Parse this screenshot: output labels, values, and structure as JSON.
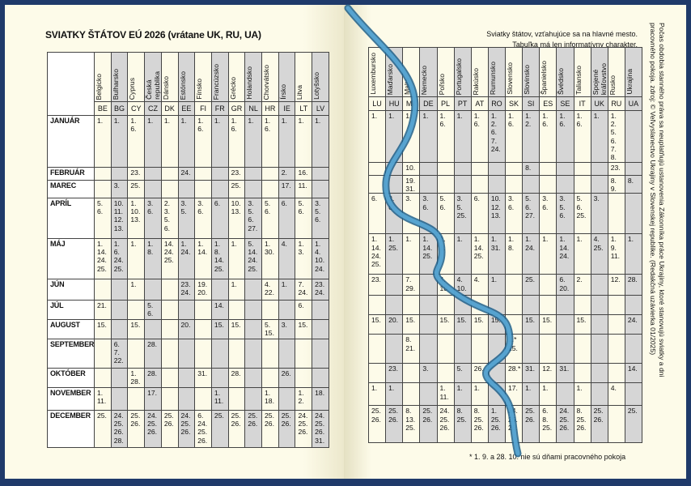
{
  "left": {
    "title": "SVIATKY ŠTÁTOV EÚ 2026 (vrátane UK, RU, UA)",
    "countries": [
      {
        "name": "Belgicko",
        "code": "BE"
      },
      {
        "name": "Bulharsko",
        "code": "BG"
      },
      {
        "name": "Cyprus",
        "code": "CY"
      },
      {
        "name": "Česká\nrepublika",
        "code": "CZ"
      },
      {
        "name": "Dánsko",
        "code": "DK"
      },
      {
        "name": "Estónsko",
        "code": "EE"
      },
      {
        "name": "Fínsko",
        "code": "FI"
      },
      {
        "name": "Francúzsko",
        "code": "FR"
      },
      {
        "name": "Grécko",
        "code": "GR"
      },
      {
        "name": "Holandsko",
        "code": "NL"
      },
      {
        "name": "Chorvátsko",
        "code": "HR"
      },
      {
        "name": "Írsko",
        "code": "IE"
      },
      {
        "name": "Litva",
        "code": "LT"
      },
      {
        "name": "Lotyšsko",
        "code": "LV"
      }
    ],
    "rows": [
      {
        "month": "JANUÁR",
        "cells": [
          "1.",
          "1.",
          "1.\n6.",
          "1.",
          "1.",
          "1.",
          "1.\n6.",
          "1.",
          "1.\n6.",
          "1.",
          "1.\n6.",
          "1.",
          "1.",
          "1."
        ]
      },
      {
        "month": "FEBRUÁR",
        "cells": [
          "",
          "",
          "23.",
          "",
          "",
          "24.",
          "",
          "",
          "23.",
          "",
          "",
          "2.",
          "16.",
          ""
        ]
      },
      {
        "month": "MAREC",
        "cells": [
          "",
          "3.",
          "25.",
          "",
          "",
          "",
          "",
          "",
          "25.",
          "",
          "",
          "17.",
          "11.",
          ""
        ]
      },
      {
        "month": "APRÍL",
        "cells": [
          "5.\n6.",
          "10.\n11.\n12.\n13.",
          "1.\n10.\n13.",
          "3.\n6.",
          "2.\n3.\n5.\n6.",
          "3.\n5.",
          "3.\n6.",
          "6.",
          "10.\n13.",
          "3.\n5.\n6.\n27.",
          "5.\n6.",
          "6.",
          "5.\n6.",
          "3.\n5.\n6."
        ]
      },
      {
        "month": "MÁJ",
        "cells": [
          "1.\n14.\n24.\n25.",
          "1.\n6.\n24.\n25.",
          "1.",
          "1.\n8.",
          "14.\n24.\n25.",
          "1.\n24.",
          "1.\n14.",
          "1.\n8.\n14.\n25.",
          "1.",
          "5.\n14.\n24.\n25.",
          "1.\n30.",
          "4.",
          "1.\n3.",
          "1.\n4.\n10.\n24."
        ]
      },
      {
        "month": "JÚN",
        "cells": [
          "",
          "",
          "1.",
          "",
          "",
          "23.\n24.",
          "19.\n20.",
          "",
          "1.",
          "",
          "4.\n22.",
          "1.",
          "7.\n24.",
          "23.\n24."
        ]
      },
      {
        "month": "JÚL",
        "cells": [
          "21.",
          "",
          "",
          "5.\n6.",
          "",
          "",
          "",
          "14.",
          "",
          "",
          "",
          "",
          "6.",
          ""
        ]
      },
      {
        "month": "AUGUST",
        "cells": [
          "15.",
          "",
          "15.",
          "",
          "",
          "20.",
          "",
          "15.",
          "15.",
          "",
          "5.\n15.",
          "3.",
          "15.",
          ""
        ]
      },
      {
        "month": "SEPTEMBER",
        "cells": [
          "",
          "6.\n7.\n22.",
          "",
          "28.",
          "",
          "",
          "",
          "",
          "",
          "",
          "",
          "",
          "",
          ""
        ]
      },
      {
        "month": "OKTÓBER",
        "cells": [
          "",
          "",
          "1.\n28.",
          "28.",
          "",
          "",
          "31.",
          "",
          "28.",
          "",
          "",
          "26.",
          "",
          ""
        ]
      },
      {
        "month": "NOVEMBER",
        "cells": [
          "1.\n11.",
          "",
          "",
          "17.",
          "",
          "",
          "",
          "1.\n11.",
          "",
          "",
          "1.\n18.",
          "",
          "1.\n2.",
          "18."
        ]
      },
      {
        "month": "DECEMBER",
        "cells": [
          "25.",
          "24.\n25.\n26.\n28.",
          "25.\n26.",
          "24.\n25.\n26.",
          "25.\n26.",
          "24.\n25.\n26.",
          "6.\n24.\n25.\n26.",
          "25.",
          "25.\n26.",
          "25.\n26.",
          "25.\n26.",
          "25.\n26.",
          "24.\n25.\n26.",
          "24.\n25.\n26.\n31."
        ]
      }
    ]
  },
  "right": {
    "note_line1": "Sviatky štátov, vzťahujúce sa na hlavné mesto.",
    "note_line2": "Tabuľka má len informatívny charakter.",
    "countries": [
      {
        "name": "Luxembursko",
        "code": "LU"
      },
      {
        "name": "Maďarsko",
        "code": "HU"
      },
      {
        "name": "Malta",
        "code": "MT"
      },
      {
        "name": "Nemecko",
        "code": "DE"
      },
      {
        "name": "Poľsko",
        "code": "PL"
      },
      {
        "name": "Portugalsko",
        "code": "PT"
      },
      {
        "name": "Rakúsko",
        "code": "AT"
      },
      {
        "name": "Rumunsko",
        "code": "RO"
      },
      {
        "name": "Slovensko",
        "code": "SK"
      },
      {
        "name": "Slovinsko",
        "code": "SI"
      },
      {
        "name": "Španielsko",
        "code": "ES"
      },
      {
        "name": "Švédsko",
        "code": "SE"
      },
      {
        "name": "Taliansko",
        "code": "IT"
      },
      {
        "name": "Spojené\nkráľovstvo",
        "code": "UK"
      },
      {
        "name": "Rusko",
        "code": "RU"
      },
      {
        "name": "Ukrajina",
        "code": "UA"
      }
    ],
    "rows": [
      {
        "cells": [
          "1.",
          "1.",
          "1.",
          "1.",
          "1.\n6.",
          "1.",
          "1.\n6.",
          "1.\n2.\n6.\n7.\n24.",
          "1.\n6.",
          "1.\n2.",
          "1.\n6.",
          "1.\n6.",
          "1.\n6.",
          "1.",
          "1.\n2.\n5.\n6.\n7.\n8.",
          ""
        ]
      },
      {
        "cells": [
          "",
          "",
          "10.",
          "",
          "",
          "",
          "",
          "",
          "",
          "8.",
          "",
          "",
          "",
          "",
          "23.",
          ""
        ]
      },
      {
        "cells": [
          "",
          "",
          "19.\n31.",
          "",
          "",
          "",
          "",
          "",
          "",
          "",
          "",
          "",
          "",
          "",
          "8.\n9.",
          "8."
        ]
      },
      {
        "cells": [
          "6.",
          "3.\n6.",
          "3.",
          "3.\n6.",
          "5.\n6.",
          "3.\n5.\n25.",
          "6.",
          "10.\n12.\n13.",
          "3.\n6.",
          "5.\n6.\n27.",
          "3.\n6.",
          "3.\n5.\n6.",
          "5.\n6.\n25.",
          "3.",
          "",
          ""
        ]
      },
      {
        "cells": [
          "1.\n14.\n24.\n25.",
          "1.\n25.",
          "1.",
          "1.\n14.\n25.",
          "1.\n3.",
          "1.",
          "1.\n14.\n25.",
          "1.\n31.",
          "1.\n8.",
          "1.\n24.",
          "1.",
          "1.\n14.\n24.",
          "1.",
          "4.\n25.",
          "1.\n9.\n11.",
          "1."
        ]
      },
      {
        "cells": [
          "23.",
          "",
          "7.\n29.",
          "",
          "4.\n10.",
          "4.\n10.",
          "4.",
          "1.",
          "",
          "25.",
          "",
          "6.\n20.",
          "2.",
          "",
          "12.",
          "28."
        ]
      },
      {
        "cells": [
          "",
          "",
          "",
          "",
          "",
          "",
          "",
          "",
          "",
          "",
          "",
          "",
          "",
          "",
          "",
          ""
        ]
      },
      {
        "cells": [
          "15.",
          "20.",
          "15.",
          "",
          "15.",
          "15.",
          "15.",
          "15.",
          "",
          "15.",
          "15.",
          "",
          "15.",
          "",
          "",
          "24."
        ]
      },
      {
        "cells": [
          "",
          "",
          "8.\n21.",
          "",
          "",
          "",
          "",
          "",
          "1.*\n15.",
          "",
          "",
          "",
          "",
          "",
          "",
          ""
        ]
      },
      {
        "cells": [
          "",
          "23.",
          "",
          "3.",
          "",
          "5.",
          "26.",
          "",
          "28.*",
          "31.",
          "12.",
          "31.",
          "",
          "",
          "",
          "14."
        ]
      },
      {
        "cells": [
          "1.",
          "1.",
          "",
          "",
          "1.\n11.",
          "1.",
          "1.",
          "",
          "17.",
          "1.",
          "1.",
          "",
          "1.",
          "",
          "4.",
          ""
        ]
      },
      {
        "cells": [
          "25.\n26.",
          "25.\n26.",
          "8.\n13.\n25.",
          "25.\n26.",
          "24.\n25.\n26.",
          "8.\n25.",
          "8.\n25.\n26.",
          "1.\n25.\n26.",
          "24.\n25.\n26.",
          "25.\n26.",
          "6.\n8.\n25.",
          "24.\n25.\n26.",
          "8.\n25.\n26.",
          "25.\n26.",
          "",
          "25."
        ]
      }
    ],
    "footnote": "* 1. 9. a 28. 10. nie sú dňami pracovného pokoja",
    "side_line1": "Počas obdobia stanného práva sa neuplatňujú ustanovenia Zákonníka práce Ukrajiny, ktoré stanovujú sviatky a dni",
    "side_line2": "pracovného pokoja. zdroj: © Veľvyslanectvo Ukrajiny v Slovenskej republike. (Redakčná uzávierka 01/2025)"
  },
  "shaded_columns_left": [
    1,
    3,
    5,
    7,
    9,
    11,
    13
  ],
  "shaded_columns_right": [
    1,
    3,
    5,
    7,
    9,
    11,
    13,
    15
  ],
  "colors": {
    "frame": "#1f3a6a",
    "paper": "#fdfbe9",
    "shade": "#d6d6d6",
    "ribbon": "#3a8ab8"
  }
}
